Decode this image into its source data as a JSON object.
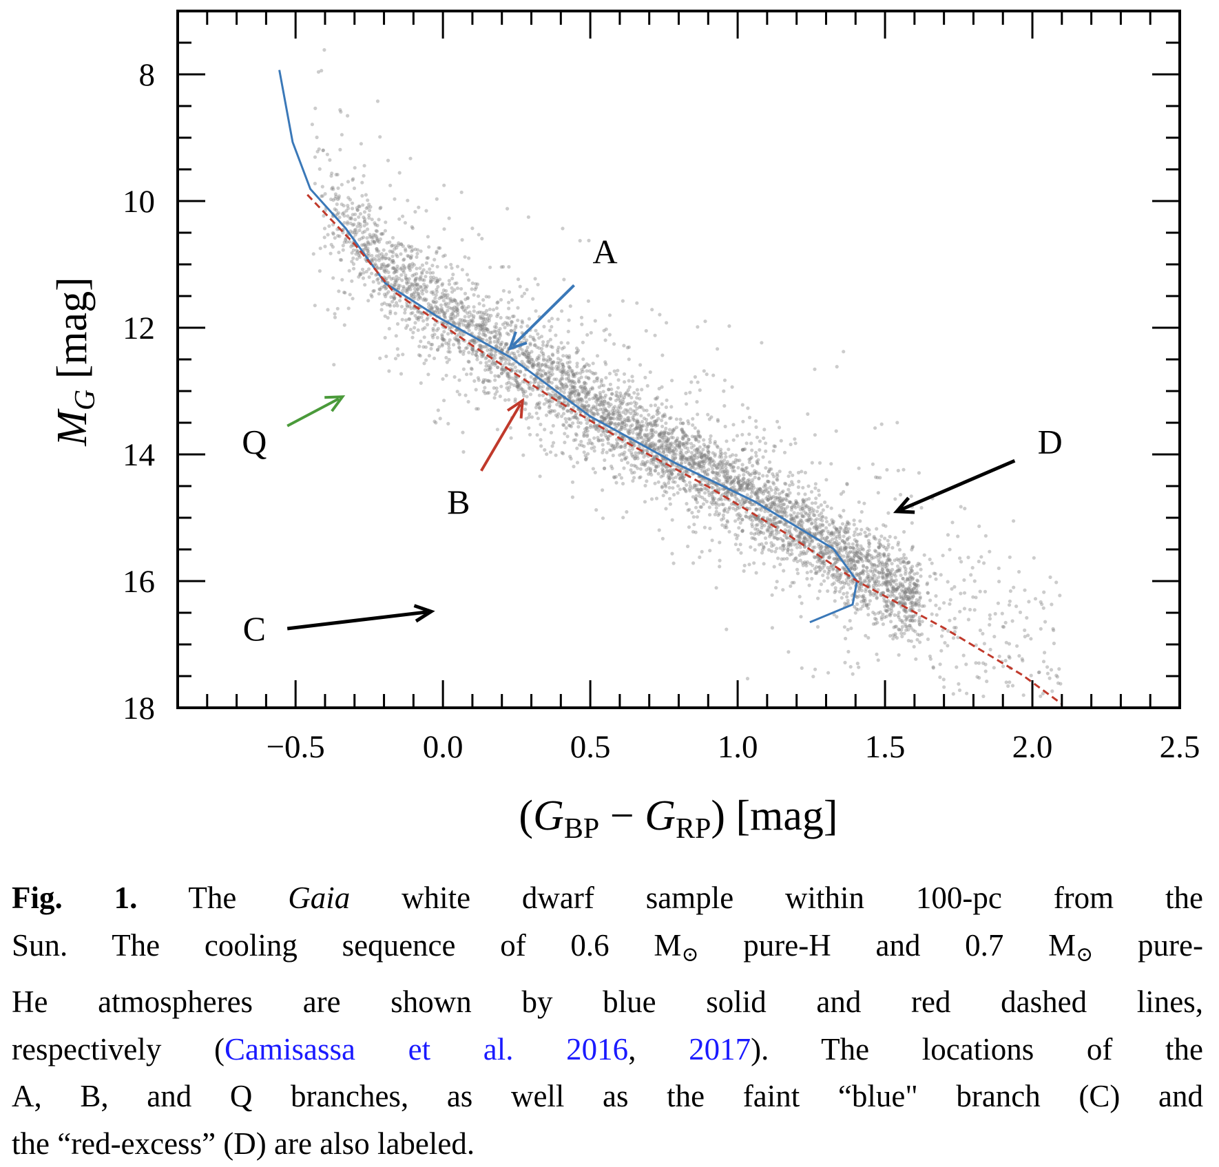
{
  "chart_data": {
    "type": "scatter",
    "xlabel": "(G_BP − G_RP) [mag]",
    "xlabel_parts": {
      "open": "(",
      "g1": "G",
      "s1": "BP",
      "minus": " − ",
      "g2": "G",
      "s2": "RP",
      "close": ")",
      "unit": " [mag]"
    },
    "ylabel_parts": {
      "m": "M",
      "sub": "G",
      "unit": " [mag]"
    },
    "xlim": [
      -0.9,
      2.5
    ],
    "ylim": [
      18,
      7
    ],
    "y_inverted": true,
    "x_ticks": [
      "−0.5",
      "0.0",
      "0.5",
      "1.0",
      "1.5",
      "2.0",
      "2.5"
    ],
    "x_tick_values": [
      -0.5,
      0.0,
      0.5,
      1.0,
      1.5,
      2.0,
      2.5
    ],
    "y_ticks": [
      "8",
      "10",
      "12",
      "14",
      "16",
      "18"
    ],
    "y_tick_values": [
      8,
      10,
      12,
      14,
      16,
      18
    ],
    "grid": false,
    "scatter_color": "#808080",
    "series": [
      {
        "style": "solid",
        "color": "#3a78b8",
        "x": [
          -0.555,
          -0.51,
          -0.45,
          -0.33,
          -0.195,
          -0.01,
          0.23,
          0.5,
          0.79,
          1.06,
          1.325,
          1.405,
          1.39,
          1.245
        ],
        "y": [
          7.93,
          9.07,
          9.81,
          10.43,
          11.3,
          11.85,
          12.47,
          13.4,
          14.14,
          14.75,
          15.49,
          16.0,
          16.37,
          16.65
        ]
      },
      {
        "style": "dashed",
        "color": "#c0392b",
        "x": [
          -0.46,
          -0.3,
          -0.17,
          0.1,
          0.365,
          0.63,
          0.9,
          1.165,
          1.405,
          1.7,
          1.965,
          2.1
        ],
        "y": [
          9.9,
          10.68,
          11.42,
          12.28,
          13.09,
          13.83,
          14.51,
          15.25,
          16.0,
          16.74,
          17.48,
          17.94
        ]
      }
    ],
    "annotations": [
      {
        "label": "A",
        "color": "#3a78b8",
        "label_at": [
          0.55,
          10.8
        ],
        "from": [
          0.445,
          11.33
        ],
        "to": [
          0.227,
          12.33
        ]
      },
      {
        "label": "B",
        "color": "#c0392b",
        "label_at": [
          0.053,
          14.75
        ],
        "from": [
          0.13,
          14.26
        ],
        "to": [
          0.27,
          13.15
        ]
      },
      {
        "label": "Q",
        "color": "#4a9a3a",
        "label_at": [
          -0.64,
          13.8
        ],
        "from": [
          -0.528,
          13.55
        ],
        "to": [
          -0.341,
          13.09
        ]
      },
      {
        "label": "C",
        "color": "#000000",
        "label_at": [
          -0.64,
          16.75
        ],
        "from": [
          -0.528,
          16.75
        ],
        "to": [
          -0.04,
          16.48
        ]
      },
      {
        "label": "D",
        "color": "#000000",
        "label_at": [
          2.06,
          13.8
        ],
        "from": [
          1.94,
          14.1
        ],
        "to": [
          1.54,
          14.9
        ]
      }
    ]
  },
  "caption": {
    "fig": "Fig. 1.",
    "l1a": " The ",
    "gaia": "Gaia",
    "l1b": " white dwarf sample within 100-pc from the",
    "l2a": "Sun. The cooling sequence of 0.6 M",
    "sun1": "⊙",
    "l2b": " pure-H and 0.7 M",
    "sun2": "⊙",
    "l2c": " pure-",
    "l3": "He atmospheres are shown by blue solid and red dashed lines,",
    "l4a": "respectively (",
    "cite1": "Camisassa et al. 2016",
    "l4b": ", ",
    "cite2": "2017",
    "l4c": "). The locations of the",
    "l5": "A, B, and Q branches, as well as the faint “blue\" branch (C) and",
    "l6": "the “red-excess” (D) are also labeled.",
    "link_color": "#1a1aff"
  }
}
